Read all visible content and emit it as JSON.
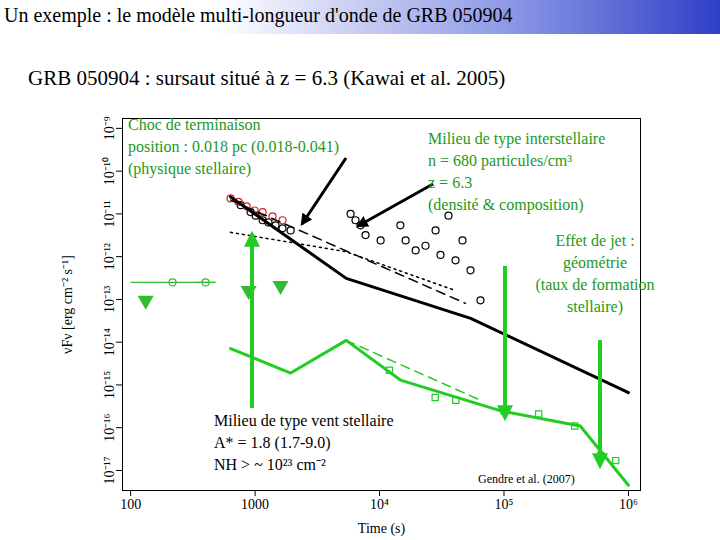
{
  "chart_data": {
    "type": "line",
    "title": "Un exemple : le modèle multi-longueur d'onde de GRB 050904",
    "subtitle": "GRB 050904 : sursaut situé à z = 6.3 (Kawai et al. 2005)",
    "x_label": "Time (s)",
    "y_label": "νFν [erg cm⁻² s⁻¹]",
    "log": true,
    "grid": false,
    "xlim": [
      86,
      1250000
    ],
    "xticks": [
      100,
      1000,
      {
        "value": 10000,
        "label": "10⁴"
      },
      {
        "value": 100000,
        "label": "10⁵"
      },
      {
        "value": 1000000,
        "label": "10⁶"
      }
    ],
    "ylim": [
      3.4e-18,
      1.7e-09
    ],
    "yticks": [
      {
        "value": 1e-17,
        "label": "10⁻¹⁷"
      },
      {
        "value": 1e-16,
        "label": "10⁻¹⁶"
      },
      {
        "value": 1e-15,
        "label": "10⁻¹⁵"
      },
      {
        "value": 1e-14,
        "label": "10⁻¹⁴"
      },
      {
        "value": 1e-13,
        "label": "10⁻¹³"
      },
      {
        "value": 1e-12,
        "label": "10⁻¹²"
      },
      {
        "value": 1e-11,
        "label": "10⁻¹¹"
      },
      {
        "value": 1e-10,
        "label": "10⁻¹⁰"
      },
      {
        "value": 1e-09,
        "label": "10⁻⁹"
      }
    ],
    "series": [
      {
        "type": "scatter",
        "marker": "circle",
        "color": "#000000",
        "x": [
          766,
          920,
          1010,
          1150,
          1280,
          1460,
          1660,
          1930,
          5850,
          6410,
          7030,
          7720,
          10200,
          14700,
          16200,
          19500,
          23400,
          28200,
          30900,
          35800,
          40800,
          46400,
          53800,
          64700
        ],
        "values": [
          1.6e-11,
          1.1e-11,
          9.1e-12,
          7.1e-12,
          6.3e-12,
          5.4e-12,
          4.6e-12,
          4.1e-12,
          1e-11,
          7.1e-12,
          5.4e-12,
          3.2e-12,
          2.4e-12,
          5.4e-12,
          2.4e-12,
          1.4e-12,
          1.8e-12,
          4.1e-12,
          1.1e-12,
          9.1e-12,
          8.2e-13,
          2.4e-12,
          4.8e-13,
          9.5e-14
        ]
      },
      {
        "type": "scatter",
        "marker": "circle",
        "color": "#e02020",
        "x": [
          635,
          736,
          855,
          991,
          1150,
          1380,
          1660
        ],
        "values": [
          2.3e-11,
          1.9e-11,
          1.5e-11,
          1.2e-11,
          1.1e-11,
          8.7e-12,
          7.1e-12
        ]
      },
      {
        "type": "line",
        "line_style": "solid",
        "color": "#000000",
        "x": [
          635,
          5400,
          54000,
          1000000
        ],
        "values": [
          2.5e-11,
          3.1e-13,
          3.6e-14,
          6.6e-16
        ]
      },
      {
        "type": "line",
        "line_style": "dashed",
        "color": "#000000",
        "x": [
          635,
          49000
        ],
        "values": [
          2.1e-11,
          8.1e-14
        ]
      },
      {
        "type": "line",
        "line_style": "dotted",
        "color": "#000000",
        "x": [
          635,
          5400,
          41000
        ],
        "values": [
          3.7e-12,
          1.3e-12,
          1.6e-13
        ]
      },
      {
        "type": "scatter",
        "marker": "circle",
        "color": "#33bb33",
        "x": [
          217,
          400
        ],
        "values": [
          2.5e-13,
          2.5e-13
        ],
        "x_min": [
          100,
          330
        ],
        "x_max": [
          480,
          480
        ]
      },
      {
        "type": "scatter",
        "marker": "triangle-down",
        "color": "#33bb33",
        "x": [
          132,
          887,
          1600
        ],
        "values": [
          9.5e-14,
          1.6e-13,
          2.1e-13
        ]
      },
      {
        "type": "line",
        "line_style": "solid",
        "color": "#22cc22",
        "x": [
          635,
          1930,
          5400,
          14700,
          93000,
          410000,
          1000000
        ],
        "values": [
          7.1e-15,
          1.9e-15,
          1.1e-14,
          1.3e-15,
          2.5e-16,
          1.1e-16,
          4.5e-18
        ]
      },
      {
        "type": "line",
        "line_style": "dashed",
        "color": "#22cc22",
        "x": [
          5400,
          64700
        ],
        "values": [
          1.1e-14,
          4.4e-16
        ]
      },
      {
        "type": "scatter",
        "marker": "square",
        "color": "#22cc22",
        "x": [
          12000,
          28000,
          41000,
          100000,
          190000,
          370000,
          600000,
          790000
        ],
        "values": [
          2.2e-15,
          5.1e-16,
          4.4e-16,
          2.5e-16,
          2.1e-16,
          1.1e-16,
          2.2e-17,
          1.7e-17
        ]
      }
    ],
    "annotations": [
      {
        "text": [
          "Choc de terminaison",
          "position : 0.018 pc (0.018-0.041)",
          "(physique stellaire)"
        ],
        "color": "#229922"
      },
      {
        "text": [
          "Milieu de type interstellaire",
          "n = 680 particules/cm³",
          "z = 6.3",
          "(densité & composition)"
        ],
        "color": "#229922"
      },
      {
        "text": [
          "Effet de jet :",
          "géométrie",
          "(taux de formation",
          "stellaire)"
        ],
        "color": "#229922"
      },
      {
        "text": [
          "Milieu de type vent stellaire",
          "A* = 1.8 (1.7-9.0)",
          "NH > ~ 10²³ cm⁻²"
        ],
        "color": "#000000"
      }
    ],
    "credit": "Gendre et al. (2007)"
  }
}
